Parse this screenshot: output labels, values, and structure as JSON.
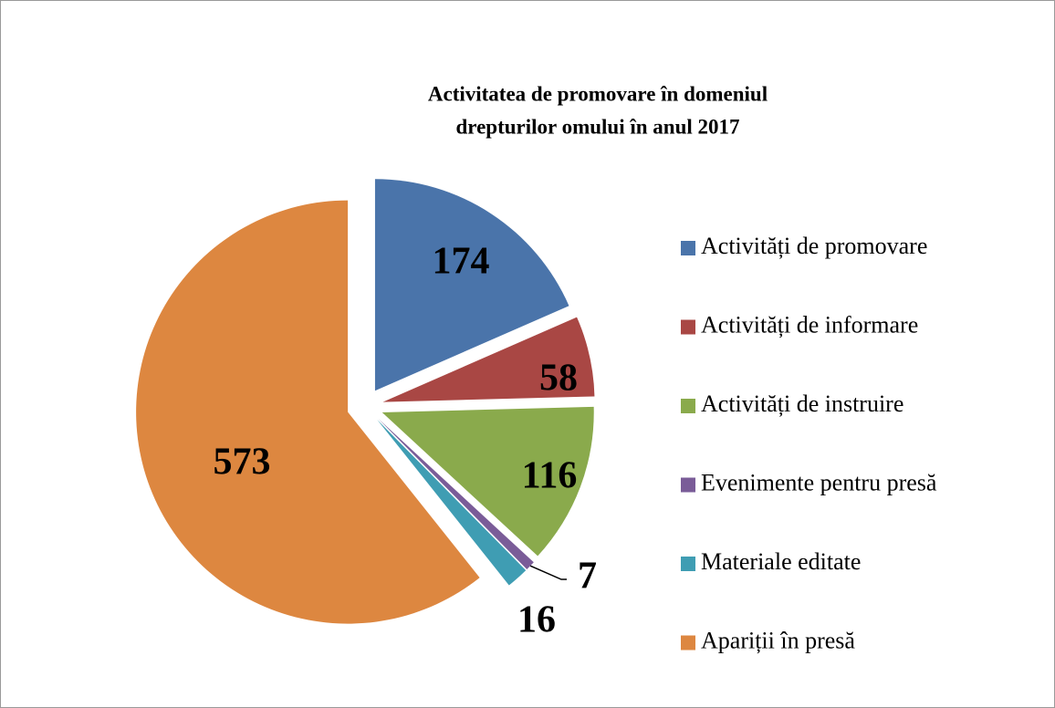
{
  "chart_data": {
    "type": "pie",
    "title": [
      "Activitatea de promovare în domeniul",
      "drepturilor omului în anul 2017"
    ],
    "categories": [
      "Activități de promovare",
      "Activități de informare",
      "Activități de instruire",
      "Evenimente pentru presă",
      "Materiale editate",
      "Apariții în presă"
    ],
    "values": [
      174,
      58,
      116,
      7,
      16,
      573
    ],
    "colors": [
      "#4a74aa",
      "#a94744",
      "#8aaa4c",
      "#7a5c98",
      "#3f9db3",
      "#dd8740"
    ],
    "legend": "right"
  }
}
